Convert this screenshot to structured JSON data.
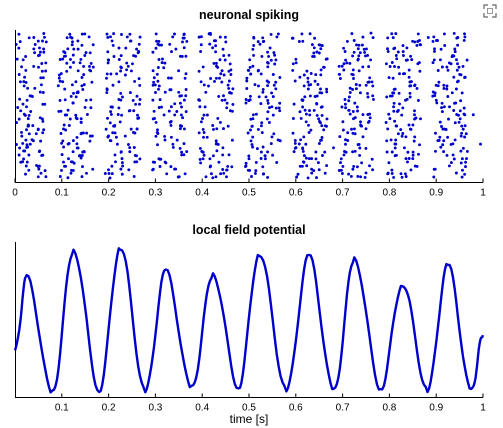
{
  "toolbar": {
    "icon": "expand-icon"
  },
  "chart_data": [
    {
      "type": "scatter",
      "title": "neuronal spiking",
      "xlabel": "",
      "ylabel": "",
      "xlim": [
        0,
        1
      ],
      "xticks": [
        "0",
        "0.1",
        "0.2",
        "0.3",
        "0.4",
        "0.5",
        "0.6",
        "0.7",
        "0.8",
        "0.9",
        "1"
      ],
      "yticks": [],
      "rhythm_hz": 10,
      "neurons": 40,
      "marker_color": "#0000cc",
      "grid": false,
      "series": [
        {
          "values": "raster of spike times; density peaks near 0.03, 0.13, 0.23, 0.33, 0.43, 0.53, 0.63, 0.73, 0.83, 0.93 s"
        }
      ]
    },
    {
      "type": "line",
      "title": "local field potential",
      "xlabel": "time [s]",
      "ylabel": "",
      "xlim": [
        0,
        1
      ],
      "xticks": [
        "0.1",
        "0.2",
        "0.3",
        "0.4",
        "0.5",
        "0.6",
        "0.7",
        "0.8",
        "0.9",
        "1"
      ],
      "yticks": [],
      "line_color": "#0000cc",
      "grid": false,
      "peaks_t": [
        0.025,
        0.125,
        0.225,
        0.322,
        0.423,
        0.522,
        0.628,
        0.725,
        0.828,
        0.925
      ],
      "peak_level": [
        0.78,
        0.96,
        0.98,
        0.82,
        0.8,
        0.94,
        0.92,
        0.9,
        0.74,
        0.86
      ],
      "trough_level": [
        0.02,
        0.04,
        0.03,
        0.05,
        0.06,
        0.04,
        0.03,
        0.05,
        0.04,
        0.03
      ],
      "start_level": 0.3,
      "end_level": 0.4
    }
  ]
}
